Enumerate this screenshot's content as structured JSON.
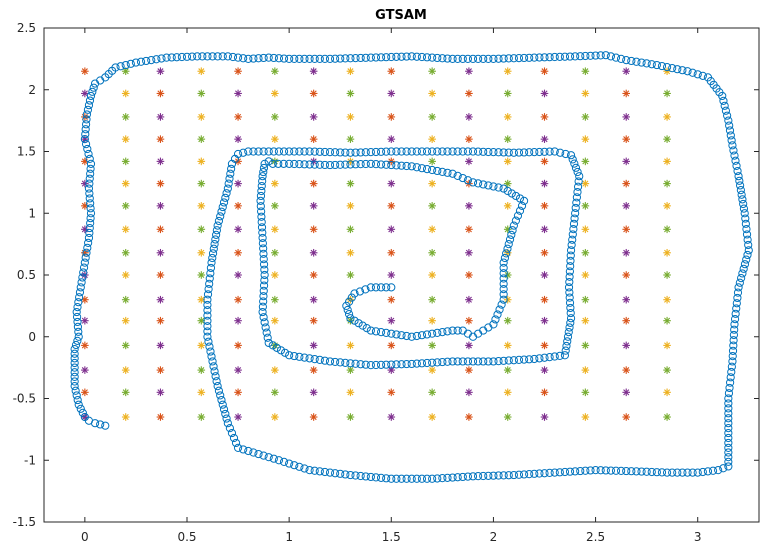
{
  "chart_data": {
    "type": "scatter",
    "title": "GTSAM",
    "xlabel": "",
    "ylabel": "",
    "xlim": [
      -0.2,
      3.3
    ],
    "ylim": [
      -1.5,
      2.5
    ],
    "x_ticks": [
      0,
      0.5,
      1,
      1.5,
      2,
      2.5,
      3
    ],
    "x_tick_labels": [
      "0",
      "0.5",
      "1",
      "1.5",
      "2",
      "2.5",
      "3"
    ],
    "y_ticks": [
      -1.5,
      -1,
      -0.5,
      0,
      0.5,
      1,
      1.5,
      2,
      2.5
    ],
    "y_tick_labels": [
      "-1.5",
      "-1",
      "-0.5",
      "0",
      "0.5",
      "1",
      "1.5",
      "2",
      "2.5"
    ],
    "grid": false,
    "legend": "none",
    "series": [
      {
        "marker": "circle",
        "color": "#0072BD",
        "x": [
          0.1,
          0.05,
          0.02,
          0.0,
          -0.03,
          -0.05,
          -0.05,
          -0.05,
          -0.03,
          -0.04,
          -0.02,
          0.0,
          0.02,
          0.03,
          0.02,
          0.03,
          0.0,
          0.01,
          0.03,
          0.05,
          0.1,
          0.15,
          0.25,
          0.4,
          0.55,
          0.7,
          0.8,
          0.9,
          1.0,
          1.2,
          1.4,
          1.6,
          1.8,
          2.0,
          2.2,
          2.4,
          2.55,
          2.65,
          2.8,
          2.95,
          3.05,
          3.12,
          3.15,
          3.17,
          3.2,
          3.23,
          3.25,
          3.2,
          3.18,
          3.17,
          3.15,
          3.15,
          3.15,
          3.15,
          3.1,
          3.0,
          2.85,
          2.7,
          2.5,
          2.3,
          2.1,
          1.9,
          1.7,
          1.5,
          1.3,
          1.1,
          0.95,
          0.85,
          0.75,
          0.7,
          0.65,
          0.6,
          0.6,
          0.62,
          0.65,
          0.7,
          0.72,
          0.75,
          0.8,
          0.9,
          1.1,
          1.3,
          1.5,
          1.7,
          1.9,
          2.1,
          2.3,
          2.38,
          2.42,
          2.4,
          2.38,
          2.37,
          2.38,
          2.35,
          2.2,
          2.0,
          1.8,
          1.6,
          1.4,
          1.2,
          1.0,
          0.9,
          0.87,
          0.88,
          0.87,
          0.86,
          0.87,
          0.88,
          0.9,
          0.92,
          1.0,
          1.2,
          1.4,
          1.6,
          1.8,
          1.9,
          2.05,
          2.15,
          2.1,
          2.05,
          2.05,
          2.0,
          1.95,
          1.9,
          1.85,
          1.8,
          1.6,
          1.4,
          1.3,
          1.28,
          1.32,
          1.4,
          1.5
        ],
        "y": [
          -0.72,
          -0.7,
          -0.68,
          -0.65,
          -0.55,
          -0.4,
          -0.25,
          -0.1,
          0.0,
          0.2,
          0.4,
          0.6,
          0.8,
          1.0,
          1.2,
          1.4,
          1.6,
          1.8,
          1.95,
          2.05,
          2.1,
          2.18,
          2.22,
          2.26,
          2.27,
          2.27,
          2.25,
          2.26,
          2.25,
          2.25,
          2.26,
          2.27,
          2.25,
          2.25,
          2.26,
          2.27,
          2.28,
          2.24,
          2.2,
          2.15,
          2.1,
          1.95,
          1.75,
          1.55,
          1.3,
          1.0,
          0.7,
          0.4,
          0.1,
          -0.2,
          -0.5,
          -0.7,
          -0.9,
          -1.05,
          -1.08,
          -1.1,
          -1.1,
          -1.09,
          -1.08,
          -1.1,
          -1.12,
          -1.13,
          -1.15,
          -1.15,
          -1.12,
          -1.08,
          -1.0,
          -0.95,
          -0.9,
          -0.7,
          -0.4,
          0.0,
          0.3,
          0.6,
          0.9,
          1.2,
          1.4,
          1.48,
          1.5,
          1.5,
          1.5,
          1.49,
          1.5,
          1.5,
          1.5,
          1.49,
          1.5,
          1.47,
          1.3,
          1.0,
          0.7,
          0.4,
          0.15,
          -0.15,
          -0.18,
          -0.2,
          -0.2,
          -0.22,
          -0.23,
          -0.2,
          -0.15,
          -0.05,
          0.2,
          0.5,
          0.8,
          1.1,
          1.3,
          1.4,
          1.42,
          1.4,
          1.4,
          1.39,
          1.4,
          1.38,
          1.32,
          1.25,
          1.2,
          1.1,
          0.9,
          0.6,
          0.3,
          0.1,
          0.05,
          0.0,
          0.05,
          0.05,
          0.0,
          0.05,
          0.15,
          0.25,
          0.35,
          0.4,
          0.4
        ]
      },
      {
        "marker": "asterisk",
        "colors": [
          "#D95319",
          "#EDB120",
          "#7E2F8E",
          "#77AC30"
        ],
        "x": [
          0,
          0.2,
          0.37,
          0.57,
          0.75,
          0.93,
          1.12,
          1.3,
          1.5,
          1.7,
          1.88,
          2.07,
          2.25,
          2.45,
          2.65,
          2.85
        ],
        "y": [
          2.15,
          1.97,
          1.78,
          1.6,
          1.42,
          1.24,
          1.06,
          0.87,
          0.68,
          0.5,
          0.3,
          0.13,
          -0.07,
          -0.27,
          -0.45,
          -0.65
        ]
      }
    ]
  }
}
